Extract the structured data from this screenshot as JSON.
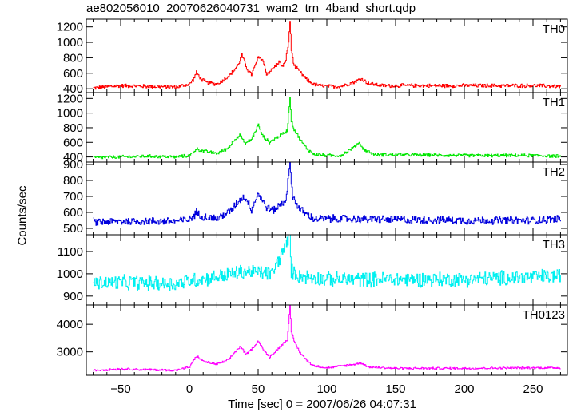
{
  "chart_data": {
    "type": "line",
    "title": "ae802056010_20070626040731_wam2_trn_4band_short.qdp",
    "xlabel": "Time [sec] 0 = 2007/06/26 04:07:31",
    "ylabel": "Counts/sec",
    "xlim": [
      -75,
      275
    ],
    "x_ticks": [
      -50,
      0,
      50,
      100,
      150,
      200,
      250
    ],
    "grid": false,
    "x_start": -70,
    "x_end": 270,
    "panels": [
      {
        "name": "TH0",
        "color": "#ff0000",
        "ylim": [
          350,
          1300
        ],
        "y_ticks": [
          400,
          600,
          800,
          1000,
          1200
        ],
        "noise": 28,
        "points": [
          [
            -70,
            410
          ],
          [
            -50,
            440
          ],
          [
            -30,
            430
          ],
          [
            -10,
            420
          ],
          [
            0,
            460
          ],
          [
            3,
            530
          ],
          [
            5,
            610
          ],
          [
            8,
            530
          ],
          [
            12,
            480
          ],
          [
            20,
            460
          ],
          [
            25,
            520
          ],
          [
            30,
            590
          ],
          [
            35,
            700
          ],
          [
            38,
            830
          ],
          [
            42,
            650
          ],
          [
            45,
            580
          ],
          [
            50,
            800
          ],
          [
            53,
            780
          ],
          [
            56,
            590
          ],
          [
            60,
            650
          ],
          [
            65,
            750
          ],
          [
            68,
            680
          ],
          [
            70,
            780
          ],
          [
            72,
            1000
          ],
          [
            73,
            1280
          ],
          [
            74,
            900
          ],
          [
            76,
            700
          ],
          [
            80,
            620
          ],
          [
            85,
            520
          ],
          [
            90,
            460
          ],
          [
            95,
            440
          ],
          [
            100,
            430
          ],
          [
            110,
            430
          ],
          [
            120,
            490
          ],
          [
            125,
            530
          ],
          [
            130,
            470
          ],
          [
            140,
            440
          ],
          [
            160,
            440
          ],
          [
            200,
            440
          ],
          [
            250,
            440
          ],
          [
            270,
            430
          ]
        ]
      },
      {
        "name": "TH1",
        "color": "#00e600",
        "ylim": [
          330,
          1280
        ],
        "y_ticks": [
          400,
          600,
          800,
          1000,
          1200
        ],
        "noise": 25,
        "points": [
          [
            -70,
            390
          ],
          [
            -50,
            400
          ],
          [
            -30,
            410
          ],
          [
            -10,
            400
          ],
          [
            0,
            420
          ],
          [
            5,
            510
          ],
          [
            10,
            480
          ],
          [
            20,
            450
          ],
          [
            28,
            520
          ],
          [
            33,
            650
          ],
          [
            37,
            700
          ],
          [
            40,
            580
          ],
          [
            45,
            640
          ],
          [
            50,
            840
          ],
          [
            53,
            690
          ],
          [
            58,
            600
          ],
          [
            62,
            650
          ],
          [
            68,
            720
          ],
          [
            71,
            760
          ],
          [
            73,
            1220
          ],
          [
            74,
            900
          ],
          [
            76,
            780
          ],
          [
            80,
            650
          ],
          [
            85,
            520
          ],
          [
            90,
            440
          ],
          [
            100,
            420
          ],
          [
            110,
            420
          ],
          [
            120,
            540
          ],
          [
            123,
            600
          ],
          [
            127,
            500
          ],
          [
            135,
            430
          ],
          [
            160,
            430
          ],
          [
            200,
            420
          ],
          [
            250,
            420
          ],
          [
            270,
            410
          ]
        ]
      },
      {
        "name": "TH2",
        "color": "#0000dd",
        "ylim": [
          460,
          915
        ],
        "y_ticks": [
          500,
          600,
          700,
          800,
          900
        ],
        "noise": 28,
        "points": [
          [
            -70,
            540
          ],
          [
            -40,
            545
          ],
          [
            -10,
            545
          ],
          [
            0,
            555
          ],
          [
            5,
            600
          ],
          [
            10,
            575
          ],
          [
            20,
            560
          ],
          [
            30,
            610
          ],
          [
            35,
            670
          ],
          [
            40,
            700
          ],
          [
            45,
            620
          ],
          [
            50,
            720
          ],
          [
            55,
            640
          ],
          [
            60,
            610
          ],
          [
            65,
            640
          ],
          [
            70,
            680
          ],
          [
            73,
            900
          ],
          [
            75,
            700
          ],
          [
            80,
            620
          ],
          [
            90,
            560
          ],
          [
            110,
            560
          ],
          [
            150,
            555
          ],
          [
            200,
            550
          ],
          [
            250,
            550
          ],
          [
            270,
            560
          ]
        ]
      },
      {
        "name": "TH3",
        "color": "#00f0f0",
        "ylim": [
          860,
          1175
        ],
        "y_ticks": [
          900,
          1000,
          1100
        ],
        "noise": 38,
        "points": [
          [
            -70,
            960
          ],
          [
            -40,
            960
          ],
          [
            -10,
            955
          ],
          [
            0,
            970
          ],
          [
            20,
            985
          ],
          [
            40,
            1010
          ],
          [
            60,
            1000
          ],
          [
            73,
            1170
          ],
          [
            74,
            1010
          ],
          [
            80,
            990
          ],
          [
            100,
            975
          ],
          [
            150,
            975
          ],
          [
            200,
            975
          ],
          [
            250,
            985
          ],
          [
            270,
            990
          ]
        ]
      },
      {
        "name": "TH0123",
        "color": "#ff00ff",
        "ylim": [
          2150,
          4700
        ],
        "y_ticks": [
          3000,
          4000
        ],
        "noise": 45,
        "points": [
          [
            -70,
            2330
          ],
          [
            -50,
            2380
          ],
          [
            -30,
            2350
          ],
          [
            -10,
            2330
          ],
          [
            0,
            2450
          ],
          [
            5,
            2850
          ],
          [
            10,
            2650
          ],
          [
            20,
            2550
          ],
          [
            28,
            2700
          ],
          [
            33,
            3000
          ],
          [
            37,
            3200
          ],
          [
            41,
            2900
          ],
          [
            46,
            3150
          ],
          [
            50,
            3400
          ],
          [
            54,
            3050
          ],
          [
            58,
            2800
          ],
          [
            63,
            3050
          ],
          [
            68,
            3300
          ],
          [
            71,
            3450
          ],
          [
            73,
            4650
          ],
          [
            74,
            3700
          ],
          [
            76,
            3400
          ],
          [
            80,
            3000
          ],
          [
            85,
            2700
          ],
          [
            90,
            2500
          ],
          [
            100,
            2420
          ],
          [
            120,
            2550
          ],
          [
            125,
            2600
          ],
          [
            130,
            2450
          ],
          [
            150,
            2400
          ],
          [
            200,
            2400
          ],
          [
            250,
            2420
          ],
          [
            270,
            2420
          ]
        ]
      }
    ]
  }
}
